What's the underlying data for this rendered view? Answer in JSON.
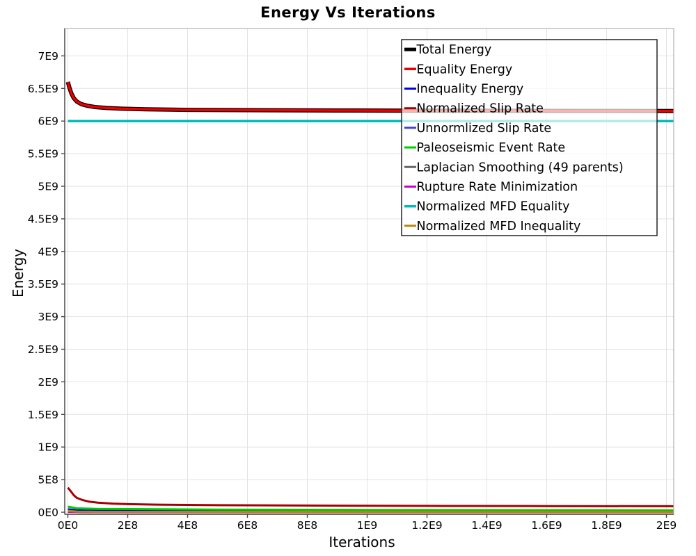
{
  "window": {
    "background": "#ffffff"
  },
  "chart_data": {
    "type": "line",
    "title": "Energy Vs Iterations",
    "xlabel": "Iterations",
    "ylabel": "Energy",
    "xlim": [
      0,
      2025000000.0
    ],
    "ylim": [
      0,
      7430000000.0
    ],
    "grid": true,
    "legend_position": "top-right",
    "x_ticks": [
      {
        "v": 0,
        "label": "0E0"
      },
      {
        "v": 200000000.0,
        "label": "2E8"
      },
      {
        "v": 400000000.0,
        "label": "4E8"
      },
      {
        "v": 600000000.0,
        "label": "6E8"
      },
      {
        "v": 800000000.0,
        "label": "8E8"
      },
      {
        "v": 1000000000.0,
        "label": "1E9"
      },
      {
        "v": 1200000000.0,
        "label": "1.2E9"
      },
      {
        "v": 1400000000.0,
        "label": "1.4E9"
      },
      {
        "v": 1600000000.0,
        "label": "1.6E9"
      },
      {
        "v": 1800000000.0,
        "label": "1.8E9"
      },
      {
        "v": 2000000000.0,
        "label": "2E9"
      }
    ],
    "y_ticks": [
      {
        "v": 0,
        "label": "0E0"
      },
      {
        "v": 500000000.0,
        "label": "5E8"
      },
      {
        "v": 1000000000.0,
        "label": "1E9"
      },
      {
        "v": 1500000000.0,
        "label": "1.5E9"
      },
      {
        "v": 2000000000.0,
        "label": "2E9"
      },
      {
        "v": 2500000000.0,
        "label": "2.5E9"
      },
      {
        "v": 3000000000.0,
        "label": "3E9"
      },
      {
        "v": 3500000000.0,
        "label": "3.5E9"
      },
      {
        "v": 4000000000.0,
        "label": "4E9"
      },
      {
        "v": 4500000000.0,
        "label": "4.5E9"
      },
      {
        "v": 5000000000.0,
        "label": "5E9"
      },
      {
        "v": 5500000000.0,
        "label": "5.5E9"
      },
      {
        "v": 6000000000.0,
        "label": "6E9"
      },
      {
        "v": 6500000000.0,
        "label": "6.5E9"
      },
      {
        "v": 7000000000.0,
        "label": "7E9"
      }
    ],
    "series": [
      {
        "name": "Total Energy",
        "color": "#000000",
        "line_width": 6,
        "points": [
          [
            0,
            6600000000.0
          ],
          [
            6000000.0,
            6500000000.0
          ],
          [
            12000000.0,
            6420000000.0
          ],
          [
            20000000.0,
            6350000000.0
          ],
          [
            30000000.0,
            6300000000.0
          ],
          [
            45000000.0,
            6260000000.0
          ],
          [
            65000000.0,
            6235000000.0
          ],
          [
            90000000.0,
            6215000000.0
          ],
          [
            130000000.0,
            6200000000.0
          ],
          [
            180000000.0,
            6190000000.0
          ],
          [
            260000000.0,
            6180000000.0
          ],
          [
            400000000.0,
            6172000000.0
          ],
          [
            600000000.0,
            6167000000.0
          ],
          [
            900000000.0,
            6162000000.0
          ],
          [
            1300000000.0,
            6158000000.0
          ],
          [
            1700000000.0,
            6156000000.0
          ],
          [
            2030000000.0,
            6155000000.0
          ]
        ]
      },
      {
        "name": "Equality Energy",
        "color": "#ee0000",
        "line_width": 3.5,
        "points": [
          [
            0,
            6600000000.0
          ],
          [
            6000000.0,
            6500000000.0
          ],
          [
            12000000.0,
            6420000000.0
          ],
          [
            20000000.0,
            6350000000.0
          ],
          [
            30000000.0,
            6300000000.0
          ],
          [
            45000000.0,
            6260000000.0
          ],
          [
            65000000.0,
            6235000000.0
          ],
          [
            90000000.0,
            6215000000.0
          ],
          [
            130000000.0,
            6200000000.0
          ],
          [
            180000000.0,
            6190000000.0
          ],
          [
            260000000.0,
            6180000000.0
          ],
          [
            400000000.0,
            6172000000.0
          ],
          [
            600000000.0,
            6167000000.0
          ],
          [
            900000000.0,
            6162000000.0
          ],
          [
            1300000000.0,
            6158000000.0
          ],
          [
            1700000000.0,
            6156000000.0
          ],
          [
            2030000000.0,
            6155000000.0
          ]
        ]
      },
      {
        "name": "Inequality Energy",
        "color": "#0000ee",
        "line_width": 3,
        "points": [
          [
            0,
            45000000.0
          ],
          [
            30000000.0,
            28000000.0
          ],
          [
            100000000.0,
            22000000.0
          ],
          [
            500000000.0,
            16000000.0
          ],
          [
            1000000000.0,
            13000000.0
          ],
          [
            2030000000.0,
            11000000.0
          ]
        ]
      },
      {
        "name": "Normalized Slip Rate",
        "color": "#a40000",
        "line_width": 3,
        "points": [
          [
            0,
            376000000.0
          ],
          [
            10000000.0,
            320000000.0
          ],
          [
            20000000.0,
            260000000.0
          ],
          [
            30000000.0,
            220000000.0
          ],
          [
            50000000.0,
            185000000.0
          ],
          [
            70000000.0,
            163000000.0
          ],
          [
            100000000.0,
            147000000.0
          ],
          [
            150000000.0,
            132000000.0
          ],
          [
            200000000.0,
            124000000.0
          ],
          [
            300000000.0,
            116000000.0
          ],
          [
            500000000.0,
            108000000.0
          ],
          [
            800000000.0,
            102000000.0
          ],
          [
            1200000000.0,
            97000000.0
          ],
          [
            1600000000.0,
            94000000.0
          ],
          [
            2030000000.0,
            92000000.0
          ]
        ]
      },
      {
        "name": "Unnormlized Slip Rate",
        "color": "#4444cc",
        "line_width": 3,
        "points": [
          [
            0,
            22000000.0
          ],
          [
            30000000.0,
            9000000.0
          ],
          [
            100000000.0,
            6000000.0
          ],
          [
            2030000000.0,
            4000000.0
          ]
        ]
      },
      {
        "name": "Paleoseismic Event Rate",
        "color": "#00cc00",
        "line_width": 3,
        "points": [
          [
            0,
            85000000.0
          ],
          [
            30000000.0,
            60000000.0
          ],
          [
            100000000.0,
            50000000.0
          ],
          [
            500000000.0,
            40000000.0
          ],
          [
            1000000000.0,
            35000000.0
          ],
          [
            2030000000.0,
            30000000.0
          ]
        ]
      },
      {
        "name": "Laplacian Smoothing (49 parents)",
        "color": "#666666",
        "line_width": 3,
        "points": [
          [
            0,
            8000000.0
          ],
          [
            50000000.0,
            3000000.0
          ],
          [
            2030000000.0,
            2000000.0
          ]
        ]
      },
      {
        "name": "Rupture Rate Minimization",
        "color": "#cc00cc",
        "line_width": 3,
        "points": [
          [
            0,
            4000000.0
          ],
          [
            50000000.0,
            1500000.0
          ],
          [
            2030000000.0,
            1000000.0
          ]
        ]
      },
      {
        "name": "Normalized MFD Equality",
        "color": "#00bbbb",
        "line_width": 3.5,
        "points": [
          [
            0,
            6000000000.0
          ],
          [
            2030000000.0,
            6000000000.0
          ]
        ]
      },
      {
        "name": "Normalized MFD Inequality",
        "color": "#b8860b",
        "line_width": 3,
        "points": [
          [
            0,
            20000000.0
          ],
          [
            30000000.0,
            8000000.0
          ],
          [
            100000000.0,
            5000000.0
          ],
          [
            2030000000.0,
            3000000.0
          ]
        ]
      }
    ],
    "style": {
      "grid_color": "#e2e2e2",
      "plot_border_color": "#b0b0b0",
      "axis_line_color": "#444444",
      "tick_label_color": "#000000",
      "legend_border_color": "#222222",
      "legend_bg": "rgba(255,255,255,0.7)"
    }
  }
}
